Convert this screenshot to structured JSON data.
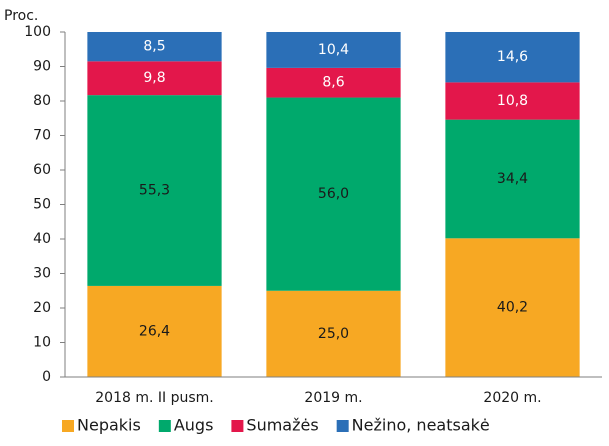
{
  "chart_data": {
    "type": "stacked_bar",
    "y_label": "Proc.",
    "categories": [
      "2018 m. II pusm.",
      "2019 m.",
      "2020 m."
    ],
    "series": [
      {
        "name": "Nepakis",
        "color": "#f7a823",
        "label_color": "#1a1a1a",
        "values": [
          26.4,
          25.0,
          40.2
        ],
        "value_labels": [
          "26,4",
          "25,0",
          "40,2"
        ]
      },
      {
        "name": "Augs",
        "color": "#00a96c",
        "label_color": "#1a1a1a",
        "values": [
          55.3,
          56.0,
          34.4
        ],
        "value_labels": [
          "55,3",
          "56,0",
          "34,4"
        ]
      },
      {
        "name": "Sumažės",
        "color": "#e3174b",
        "label_color": "#ffffff",
        "values": [
          9.8,
          8.6,
          10.8
        ],
        "value_labels": [
          "9,8",
          "8,6",
          "10,8"
        ]
      },
      {
        "name": "Nežino, neatsakė",
        "color": "#2b6fb7",
        "label_color": "#ffffff",
        "values": [
          8.5,
          10.4,
          14.6
        ],
        "value_labels": [
          "8,5",
          "10,4",
          "14,6"
        ]
      }
    ],
    "ylim": [
      0,
      100
    ],
    "yticks": [
      0,
      10,
      20,
      30,
      40,
      50,
      60,
      70,
      80,
      90,
      100
    ],
    "grid": false,
    "legend": "bottom"
  }
}
